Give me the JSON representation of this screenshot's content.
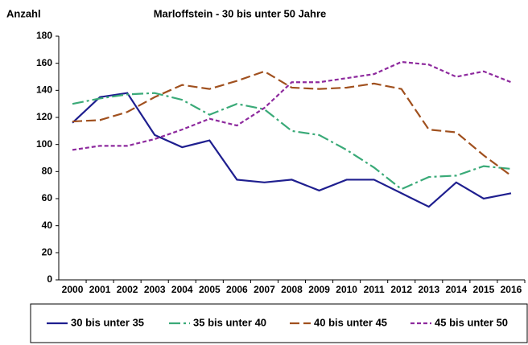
{
  "chart_data": {
    "type": "line",
    "title": "Marloffstein - 30 bis unter 50 Jahre",
    "y_label": "Anzahl",
    "categories": [
      "2000",
      "2001",
      "2002",
      "2003",
      "2004",
      "2005",
      "2006",
      "2007",
      "2008",
      "2009",
      "2010",
      "2011",
      "2012",
      "2013",
      "2014",
      "2015",
      "2016"
    ],
    "series": [
      {
        "name": "30 bis unter 35",
        "color": "#1f1f8f",
        "values": [
          116,
          135,
          138,
          107,
          98,
          103,
          74,
          72,
          74,
          66,
          74,
          74,
          64,
          54,
          72,
          60,
          64
        ]
      },
      {
        "name": "35 bis unter 40",
        "color": "#3aaa78",
        "values": [
          130,
          134,
          137,
          138,
          133,
          122,
          130,
          126,
          110,
          107,
          96,
          83,
          67,
          76,
          77,
          84,
          82
        ]
      },
      {
        "name": "40 bis unter 45",
        "color": "#a0501e",
        "values": [
          117,
          118,
          124,
          135,
          144,
          141,
          147,
          154,
          142,
          141,
          142,
          145,
          141,
          111,
          109,
          92,
          77
        ]
      },
      {
        "name": "45 bis unter 50",
        "color": "#8e2a9e",
        "values": [
          96,
          99,
          99,
          104,
          111,
          119,
          114,
          127,
          146,
          146,
          149,
          152,
          161,
          159,
          150,
          154,
          146
        ]
      }
    ],
    "ylim": [
      0,
      180
    ],
    "yticks": [
      0,
      20,
      40,
      60,
      80,
      100,
      120,
      140,
      160,
      180
    ],
    "grid": false,
    "legend": "bottom"
  }
}
